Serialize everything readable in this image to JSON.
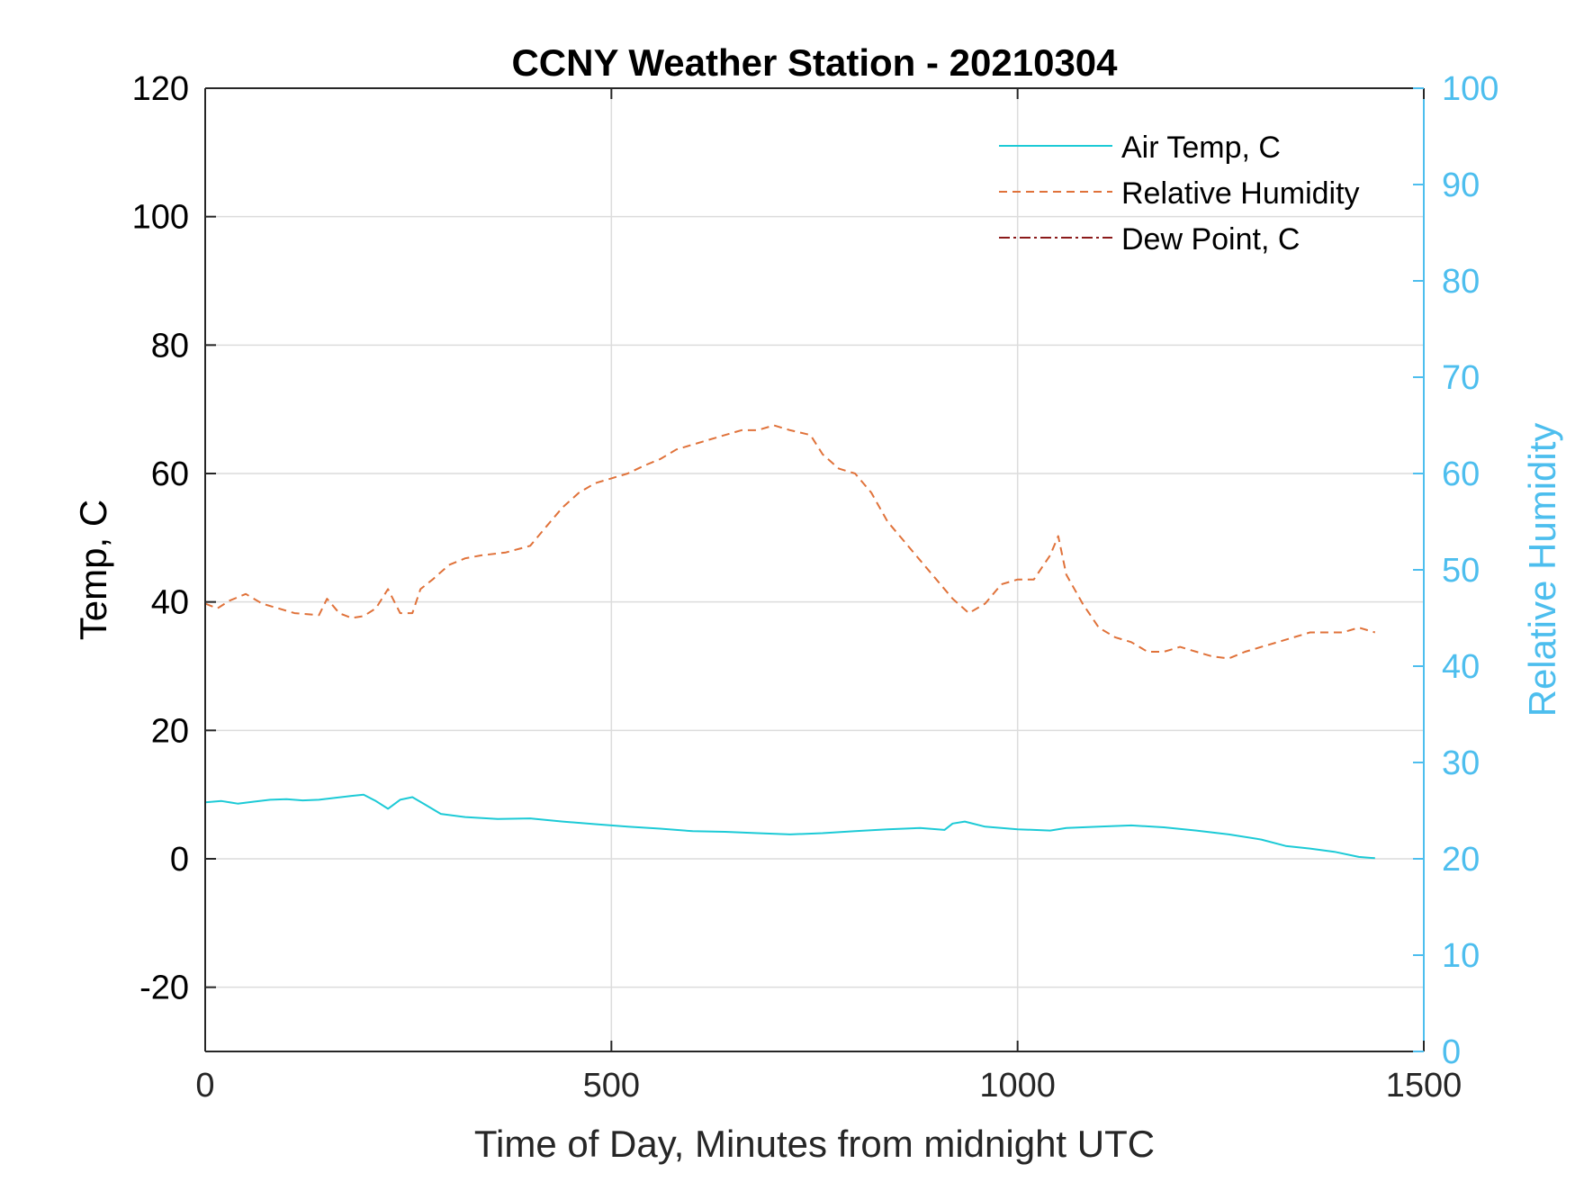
{
  "chart_data": {
    "type": "line",
    "title": "CCNY Weather Station - 20210304",
    "xlabel": "Time of Day, Minutes from midnight UTC",
    "ylabel_left": "Temp, C",
    "ylabel_right": "Relative Humidity",
    "xlim": [
      0,
      1500
    ],
    "ylim_left": [
      -30,
      120
    ],
    "ylim_right": [
      0,
      100
    ],
    "xticks": [
      "0",
      "500",
      "1000",
      "1500"
    ],
    "yticks_left": [
      "-20",
      "0",
      "20",
      "40",
      "60",
      "80",
      "100",
      "120"
    ],
    "yticks_right": [
      "0",
      "10",
      "20",
      "30",
      "40",
      "50",
      "60",
      "70",
      "80",
      "90",
      "100"
    ],
    "grid": true,
    "legend_position": "top-right",
    "colors": {
      "left_axis": "#000000",
      "right_axis": "#4DBEEE",
      "grid": "#dcdcdc"
    },
    "series": [
      {
        "name": "Air Temp, C",
        "axis": "left",
        "color": "#1ccad6",
        "style": "solid",
        "x": [
          0,
          20,
          40,
          60,
          80,
          100,
          120,
          140,
          160,
          180,
          195,
          210,
          225,
          240,
          255,
          270,
          290,
          320,
          360,
          400,
          440,
          480,
          520,
          560,
          600,
          640,
          680,
          720,
          760,
          800,
          840,
          880,
          910,
          920,
          935,
          960,
          1000,
          1040,
          1060,
          1100,
          1140,
          1180,
          1220,
          1260,
          1300,
          1330,
          1360,
          1390,
          1420,
          1440
        ],
        "y": [
          8.8,
          9.0,
          8.6,
          8.9,
          9.2,
          9.3,
          9.1,
          9.2,
          9.5,
          9.8,
          10.0,
          9.0,
          7.8,
          9.2,
          9.6,
          8.5,
          7.0,
          6.5,
          6.2,
          6.3,
          5.8,
          5.4,
          5.0,
          4.7,
          4.3,
          4.2,
          4.0,
          3.8,
          4.0,
          4.3,
          4.6,
          4.8,
          4.5,
          5.5,
          5.8,
          5.0,
          4.6,
          4.4,
          4.8,
          5.0,
          5.2,
          4.9,
          4.4,
          3.8,
          3.0,
          2.0,
          1.6,
          1.1,
          0.3,
          0.1
        ]
      },
      {
        "name": "Relative Humidity",
        "axis": "right",
        "color": "#e0723a",
        "style": "dashed",
        "x": [
          0,
          15,
          30,
          50,
          70,
          90,
          110,
          140,
          150,
          165,
          180,
          195,
          210,
          225,
          240,
          255,
          265,
          280,
          300,
          320,
          340,
          370,
          400,
          420,
          440,
          460,
          480,
          500,
          520,
          540,
          560,
          580,
          600,
          620,
          640,
          660,
          680,
          700,
          720,
          745,
          760,
          780,
          800,
          820,
          840,
          860,
          880,
          900,
          920,
          940,
          960,
          980,
          1000,
          1020,
          1040,
          1050,
          1060,
          1080,
          1100,
          1120,
          1140,
          1160,
          1180,
          1200,
          1220,
          1240,
          1260,
          1280,
          1300,
          1320,
          1340,
          1360,
          1380,
          1400,
          1420,
          1440
        ],
        "y": [
          46.5,
          46.0,
          46.8,
          47.5,
          46.5,
          46.0,
          45.5,
          45.3,
          47.0,
          45.5,
          45.0,
          45.2,
          46.0,
          48.0,
          45.5,
          45.5,
          48.0,
          49.0,
          50.5,
          51.2,
          51.5,
          51.8,
          52.5,
          54.5,
          56.5,
          58.0,
          59.0,
          59.5,
          60.0,
          60.8,
          61.5,
          62.5,
          63.0,
          63.5,
          64.0,
          64.5,
          64.5,
          65.0,
          64.5,
          64.0,
          62.0,
          60.5,
          60.0,
          58.0,
          55.0,
          53.0,
          51.0,
          49.0,
          47.0,
          45.5,
          46.5,
          48.5,
          49.0,
          49.0,
          51.5,
          53.5,
          49.5,
          46.5,
          44.0,
          43.0,
          42.5,
          41.5,
          41.5,
          42.0,
          41.5,
          41.0,
          40.8,
          41.5,
          42.0,
          42.5,
          43.0,
          43.5,
          43.5,
          43.5,
          44.0,
          43.5
        ]
      },
      {
        "name": "Dew Point, C",
        "axis": "left",
        "color": "#8b1a1a",
        "style": "dashdot",
        "x": [],
        "y": []
      }
    ]
  }
}
